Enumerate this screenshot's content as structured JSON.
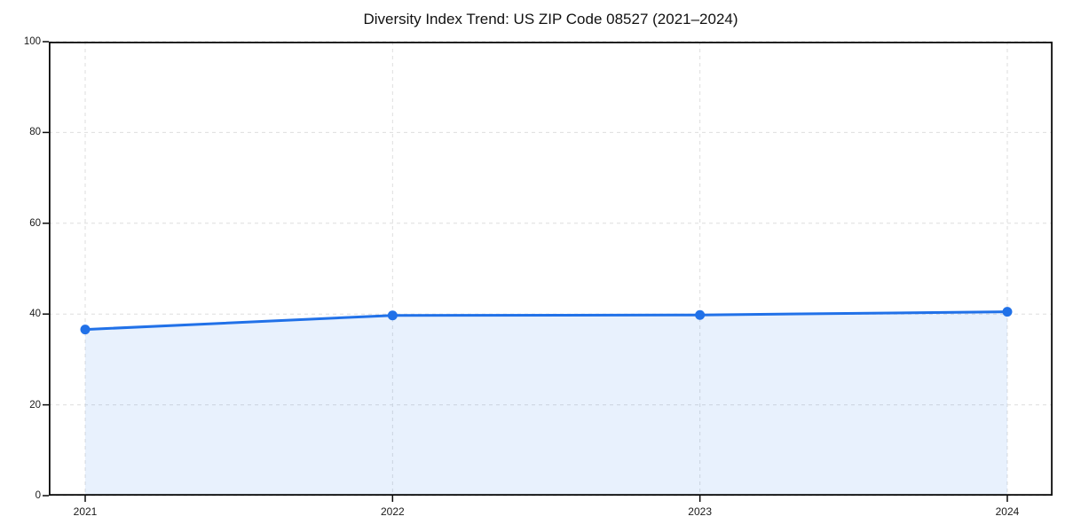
{
  "chart": {
    "title": "Diversity Index Trend: US ZIP Code 08527 (2021–2024)"
  },
  "chart_data": {
    "type": "line",
    "title": "Diversity Index Trend: US ZIP Code 08527 (2021–2024)",
    "categories": [
      "2021",
      "2022",
      "2023",
      "2024"
    ],
    "series": [
      {
        "name": "Diversity Index",
        "values": [
          36.6,
          39.7,
          39.8,
          40.5
        ]
      }
    ],
    "xlabel": "",
    "ylabel": "",
    "ylim": [
      0,
      100
    ],
    "yticks": [
      0,
      20,
      40,
      60,
      80,
      100
    ],
    "grid": true,
    "grid_style": "dashed",
    "legend": "none",
    "marker": "circle",
    "area_fill": true,
    "colors": {
      "line": "#2171e8",
      "marker": "#2171e8",
      "fill": "#2171e8",
      "fill_opacity": 0.1,
      "gridline": "#dedede",
      "frame": "#0a0a0a",
      "tick_text": "#1a1a1a",
      "background": "#ffffff"
    }
  }
}
